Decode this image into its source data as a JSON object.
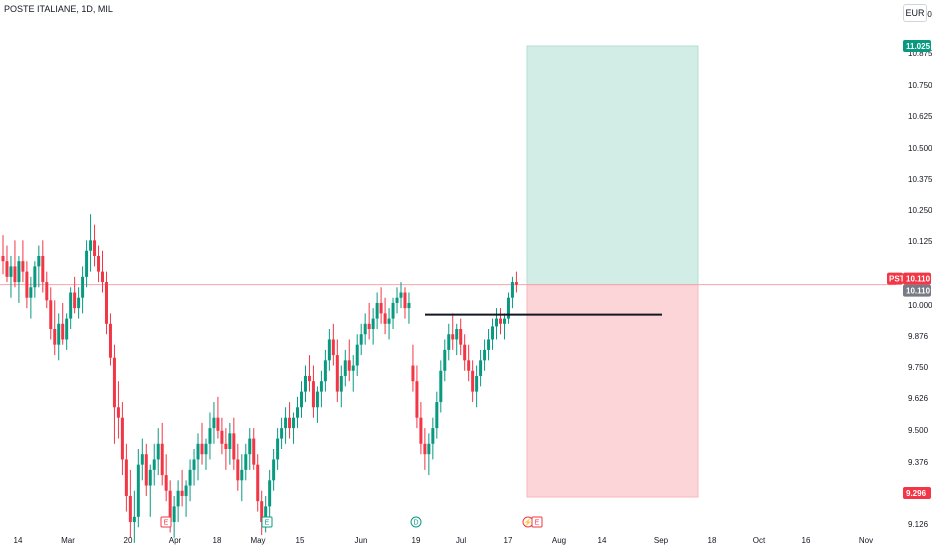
{
  "header": {
    "title": "POSTE ITALIANE, 1D, MIL",
    "currency": "EUR"
  },
  "chart_data": {
    "type": "candlestick",
    "x_labels": [
      "14",
      "Mar",
      "20",
      "Apr",
      "18",
      "May",
      "15",
      "Jun",
      "19",
      "Jul",
      "17",
      "Aug",
      "14",
      "Sep",
      "18",
      "Oct",
      "16",
      "Nov"
    ],
    "y_ticks": [
      "11.000",
      "10.875",
      "10.750",
      "10.625",
      "10.500",
      "10.375",
      "10.250",
      "10.125",
      "10.000",
      "9.876",
      "9.750",
      "9.626",
      "9.500",
      "9.376",
      "9.250",
      "9.126"
    ],
    "y_range": [
      9.1,
      11.1
    ],
    "price_tags": {
      "target": {
        "value": 11.025,
        "label": "11.025",
        "color": "#089981"
      },
      "symbol": {
        "label": "PST",
        "value": 10.11,
        "value_label": "10.110",
        "color": "#f23645"
      },
      "last": {
        "value": 10.11,
        "label": "10.110",
        "color": "#787b86"
      },
      "stop": {
        "value": 9.296,
        "label": "9.296",
        "color": "#f23645"
      }
    },
    "position": {
      "entry": 10.11,
      "target": 11.025,
      "stop": 9.296,
      "profit_color": "#d1ede6",
      "loss_color": "#fbd5d7"
    },
    "level_line": 9.995,
    "events": [
      {
        "symbol": "E",
        "kind": "earnings",
        "color": "#f23645"
      },
      {
        "symbol": "E",
        "kind": "earnings",
        "color": "#089981"
      },
      {
        "symbol": "D",
        "kind": "dividend",
        "color": "#089981"
      },
      {
        "symbol": "⚡",
        "kind": "split",
        "color": "#f23645"
      },
      {
        "symbol": "E",
        "kind": "earnings",
        "color": "#f23645"
      }
    ],
    "colors": {
      "up": "#089981",
      "down": "#f23645"
    },
    "candles": [
      [
        10.22,
        10.3,
        10.15,
        10.2
      ],
      [
        10.2,
        10.26,
        10.12,
        10.14
      ],
      [
        10.14,
        10.22,
        10.06,
        10.18
      ],
      [
        10.18,
        10.28,
        10.1,
        10.12
      ],
      [
        10.12,
        10.22,
        10.04,
        10.2
      ],
      [
        10.2,
        10.28,
        10.12,
        10.16
      ],
      [
        10.16,
        10.2,
        10.02,
        10.06
      ],
      [
        10.06,
        10.14,
        9.98,
        10.1
      ],
      [
        10.1,
        10.2,
        10.06,
        10.18
      ],
      [
        10.18,
        10.26,
        10.1,
        10.22
      ],
      [
        10.22,
        10.28,
        10.08,
        10.12
      ],
      [
        10.12,
        10.16,
        10.02,
        10.05
      ],
      [
        10.05,
        10.1,
        9.9,
        9.94
      ],
      [
        9.94,
        10.05,
        9.84,
        9.88
      ],
      [
        9.88,
        10.0,
        9.82,
        9.96
      ],
      [
        9.96,
        10.04,
        9.88,
        9.9
      ],
      [
        9.9,
        10.0,
        9.86,
        9.98
      ],
      [
        9.98,
        10.1,
        9.94,
        10.08
      ],
      [
        10.08,
        10.14,
        10.0,
        10.02
      ],
      [
        10.02,
        10.1,
        9.98,
        10.06
      ],
      [
        10.06,
        10.18,
        10.0,
        10.14
      ],
      [
        10.14,
        10.28,
        10.1,
        10.24
      ],
      [
        10.24,
        10.38,
        10.16,
        10.28
      ],
      [
        10.28,
        10.34,
        10.18,
        10.22
      ],
      [
        10.22,
        10.26,
        10.12,
        10.16
      ],
      [
        10.16,
        10.24,
        10.08,
        10.12
      ],
      [
        10.12,
        10.16,
        9.92,
        9.96
      ],
      [
        9.96,
        10.0,
        9.8,
        9.83
      ],
      [
        9.83,
        9.88,
        9.5,
        9.64
      ],
      [
        9.64,
        9.74,
        9.52,
        9.6
      ],
      [
        9.6,
        9.66,
        9.38,
        9.44
      ],
      [
        9.44,
        9.5,
        9.24,
        9.3
      ],
      [
        9.3,
        9.4,
        9.14,
        9.2
      ],
      [
        9.2,
        9.32,
        9.12,
        9.22
      ],
      [
        9.22,
        9.48,
        9.18,
        9.42
      ],
      [
        9.42,
        9.52,
        9.36,
        9.46
      ],
      [
        9.46,
        9.5,
        9.3,
        9.34
      ],
      [
        9.34,
        9.42,
        9.22,
        9.4
      ],
      [
        9.4,
        9.5,
        9.34,
        9.44
      ],
      [
        9.44,
        9.56,
        9.38,
        9.5
      ],
      [
        9.5,
        9.58,
        9.34,
        9.38
      ],
      [
        9.38,
        9.46,
        9.28,
        9.32
      ],
      [
        9.32,
        9.36,
        9.16,
        9.2
      ],
      [
        9.2,
        9.3,
        9.14,
        9.26
      ],
      [
        9.26,
        9.36,
        9.2,
        9.32
      ],
      [
        9.32,
        9.4,
        9.26,
        9.3
      ],
      [
        9.3,
        9.36,
        9.22,
        9.34
      ],
      [
        9.34,
        9.44,
        9.28,
        9.4
      ],
      [
        9.4,
        9.48,
        9.34,
        9.44
      ],
      [
        9.44,
        9.54,
        9.36,
        9.5
      ],
      [
        9.5,
        9.58,
        9.42,
        9.46
      ],
      [
        9.46,
        9.52,
        9.4,
        9.5
      ],
      [
        9.5,
        9.62,
        9.44,
        9.56
      ],
      [
        9.56,
        9.66,
        9.5,
        9.6
      ],
      [
        9.6,
        9.68,
        9.52,
        9.55
      ],
      [
        9.55,
        9.6,
        9.46,
        9.5
      ],
      [
        9.5,
        9.56,
        9.4,
        9.48
      ],
      [
        9.48,
        9.58,
        9.42,
        9.54
      ],
      [
        9.54,
        9.6,
        9.4,
        9.44
      ],
      [
        9.44,
        9.5,
        9.32,
        9.36
      ],
      [
        9.36,
        9.46,
        9.28,
        9.4
      ],
      [
        9.4,
        9.5,
        9.36,
        9.46
      ],
      [
        9.46,
        9.56,
        9.4,
        9.52
      ],
      [
        9.52,
        9.56,
        9.4,
        9.42
      ],
      [
        9.42,
        9.46,
        9.24,
        9.28
      ],
      [
        9.28,
        9.32,
        9.15,
        9.2
      ],
      [
        9.2,
        9.3,
        9.16,
        9.26
      ],
      [
        9.26,
        9.4,
        9.22,
        9.36
      ],
      [
        9.36,
        9.48,
        9.32,
        9.44
      ],
      [
        9.44,
        9.56,
        9.4,
        9.52
      ],
      [
        9.52,
        9.6,
        9.48,
        9.56
      ],
      [
        9.56,
        9.64,
        9.5,
        9.6
      ],
      [
        9.6,
        9.66,
        9.52,
        9.56
      ],
      [
        9.56,
        9.62,
        9.5,
        9.6
      ],
      [
        9.6,
        9.68,
        9.56,
        9.64
      ],
      [
        9.64,
        9.74,
        9.6,
        9.7
      ],
      [
        9.7,
        9.8,
        9.66,
        9.76
      ],
      [
        9.76,
        9.84,
        9.7,
        9.74
      ],
      [
        9.74,
        9.8,
        9.6,
        9.64
      ],
      [
        9.64,
        9.72,
        9.58,
        9.7
      ],
      [
        9.7,
        9.78,
        9.64,
        9.74
      ],
      [
        9.74,
        9.86,
        9.7,
        9.82
      ],
      [
        9.82,
        9.94,
        9.78,
        9.9
      ],
      [
        9.9,
        9.96,
        9.8,
        9.84
      ],
      [
        9.84,
        9.9,
        9.66,
        9.7
      ],
      [
        9.7,
        9.8,
        9.64,
        9.76
      ],
      [
        9.76,
        9.86,
        9.72,
        9.82
      ],
      [
        9.82,
        9.9,
        9.74,
        9.78
      ],
      [
        9.78,
        9.84,
        9.7,
        9.8
      ],
      [
        9.8,
        9.92,
        9.76,
        9.88
      ],
      [
        9.88,
        9.96,
        9.84,
        9.92
      ],
      [
        9.92,
        10.0,
        9.88,
        9.96
      ],
      [
        9.96,
        10.04,
        9.9,
        9.94
      ],
      [
        9.94,
        10.02,
        9.88,
        9.98
      ],
      [
        9.98,
        10.08,
        9.94,
        10.04
      ],
      [
        10.04,
        10.1,
        9.96,
        10.0
      ],
      [
        10.0,
        10.06,
        9.92,
        9.96
      ],
      [
        9.96,
        10.02,
        9.9,
        9.98
      ],
      [
        9.98,
        10.06,
        9.94,
        10.04
      ],
      [
        10.04,
        10.1,
        10.0,
        10.06
      ],
      [
        10.06,
        10.12,
        10.02,
        10.08
      ],
      [
        10.08,
        10.1,
        9.98,
        10.02
      ],
      [
        10.02,
        10.08,
        9.96,
        10.04
      ],
      [
        9.8,
        9.88,
        9.7,
        9.74
      ],
      [
        9.74,
        9.8,
        9.56,
        9.6
      ],
      [
        9.6,
        9.66,
        9.46,
        9.5
      ],
      [
        9.5,
        9.56,
        9.4,
        9.46
      ],
      [
        9.46,
        9.54,
        9.38,
        9.5
      ],
      [
        9.5,
        9.6,
        9.44,
        9.56
      ],
      [
        9.56,
        9.7,
        9.52,
        9.66
      ],
      [
        9.66,
        9.82,
        9.62,
        9.78
      ],
      [
        9.78,
        9.9,
        9.74,
        9.86
      ],
      [
        9.86,
        9.96,
        9.82,
        9.92
      ],
      [
        9.92,
        10.0,
        9.86,
        9.9
      ],
      [
        9.9,
        9.96,
        9.84,
        9.94
      ],
      [
        9.94,
        9.98,
        9.84,
        9.88
      ],
      [
        9.88,
        9.92,
        9.78,
        9.82
      ],
      [
        9.82,
        9.88,
        9.74,
        9.78
      ],
      [
        9.78,
        9.82,
        9.66,
        9.7
      ],
      [
        9.7,
        9.8,
        9.64,
        9.76
      ],
      [
        9.76,
        9.86,
        9.72,
        9.82
      ],
      [
        9.82,
        9.9,
        9.78,
        9.86
      ],
      [
        9.86,
        9.94,
        9.82,
        9.9
      ],
      [
        9.9,
        9.98,
        9.86,
        9.95
      ],
      [
        9.95,
        10.02,
        9.9,
        9.98
      ],
      [
        9.98,
        10.02,
        9.92,
        9.96
      ],
      [
        9.96,
        10.0,
        9.9,
        9.98
      ],
      [
        9.98,
        10.08,
        9.96,
        10.06
      ],
      [
        10.06,
        10.14,
        10.02,
        10.12
      ],
      [
        10.12,
        10.16,
        10.08,
        10.11
      ]
    ]
  }
}
